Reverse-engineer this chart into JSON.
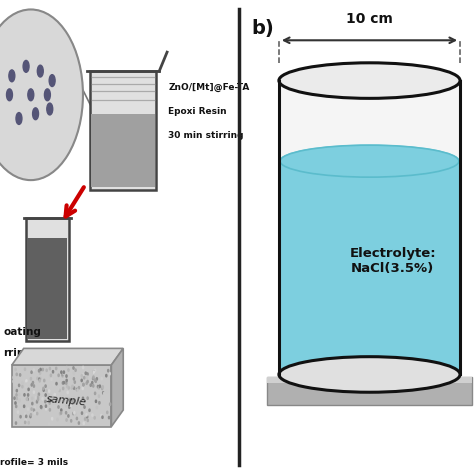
{
  "bg_color": "#ffffff",
  "label_b": "b)",
  "dimension_label": "10 cm",
  "electrolyte_label": "Electrolyte:\nNaCl(3.5%)",
  "beaker_label1": "ZnO/[Mt]@Fe-TA",
  "beaker_label2": "Epoxi Resin",
  "beaker_label3": "30 min stirring",
  "coating_label1": "oating",
  "coating_label2": "rring",
  "sample_label": "sample",
  "profile_label": "rofile= 3 mils",
  "blob_color": "#d8d8d8",
  "blob_edge": "#888888",
  "dot_color": "#555577",
  "beaker_fill": "#e0e0e0",
  "beaker_liquid": "#a0a0a0",
  "beaker_edge": "#444444",
  "beaker2_liquid": "#606060",
  "red_arrow": "#cc0000",
  "sample_color": "#cccccc",
  "sample_edge": "#888888",
  "cylinder_liquid": "#7DCFDF",
  "cylinder_liquid_dark": "#5bbccc",
  "cylinder_wall": "#111111",
  "cylinder_bg": "#f5f5f5",
  "base_color": "#b0b0b0",
  "base_edge": "#888888",
  "divider_color": "#222222",
  "text_color": "#111111",
  "dim_line_color": "#333333"
}
